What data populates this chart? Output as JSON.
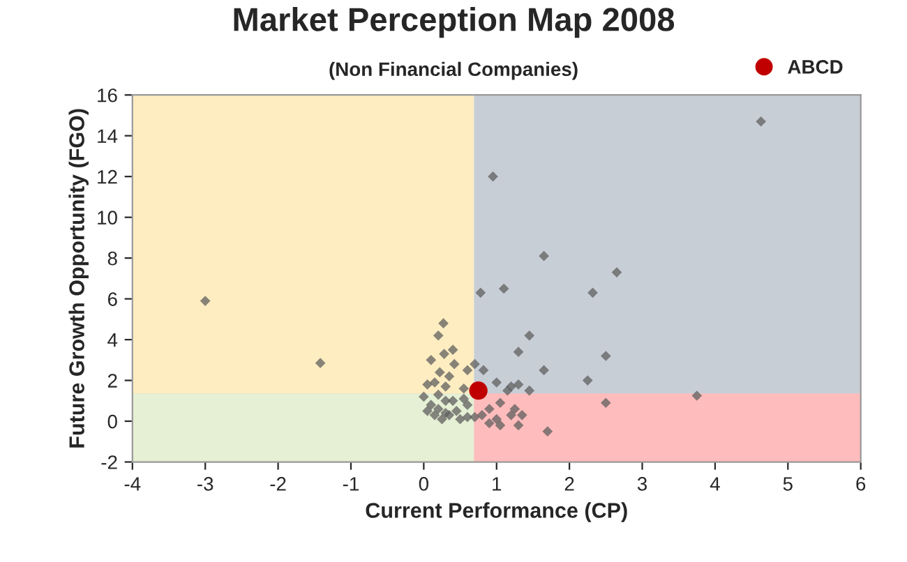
{
  "chart_data": {
    "type": "scatter",
    "title": "Market Perception Map 2008",
    "subtitle": "(Non Financial Companies)",
    "xlabel": "Current Performance (CP)",
    "ylabel": "Future Growth Opportunity (FGO)",
    "xlim": [
      -4,
      6
    ],
    "xticks": [
      -4,
      -3,
      -2,
      -1,
      0,
      1,
      2,
      3,
      4,
      5,
      6
    ],
    "ylim": [
      -2,
      16
    ],
    "yticks": [
      -2,
      0,
      2,
      4,
      6,
      8,
      10,
      12,
      14,
      16
    ],
    "grid": false,
    "legend": "top right",
    "bands": [
      {
        "axis": "x",
        "from": -4,
        "to": 0.69,
        "color": "#fdedc0"
      },
      {
        "axis": "x",
        "from": 0.69,
        "to": 6,
        "color": "#c8ced6"
      },
      {
        "axis": "y",
        "from": -2,
        "to": 1.36,
        "color": "#ffbcbc"
      }
    ],
    "series": [
      {
        "color": "#5f5f5f",
        "marker": "diamond",
        "x": [
          -3,
          -1.42,
          4.63,
          0.95,
          1.65,
          2.65,
          1.1,
          0.78,
          2.32,
          1.45,
          2.5,
          0.27,
          0.2,
          0.4,
          0.28,
          0.1,
          0.42,
          0.22,
          0.6,
          0.82,
          0.7,
          0.35,
          1.3,
          1.65,
          1.0,
          0.15,
          0.05,
          0.3,
          0.55,
          1.15,
          1.2,
          1.3,
          1.45,
          2.25,
          3.75,
          2.5,
          1.7,
          0.9,
          1.05,
          1.25,
          1.35,
          1.2,
          1.05,
          0.9,
          1.0,
          0.8,
          1.3,
          0.0,
          0.1,
          0.2,
          0.3,
          0.35,
          0.45,
          0.5,
          0.15,
          0.05,
          0.25,
          0.6,
          0.6,
          0.4,
          0.2,
          0.7,
          0.55,
          0.3
        ],
        "values": [
          5.9,
          2.85,
          14.7,
          12,
          8.1,
          7.3,
          6.5,
          6.3,
          6.3,
          4.2,
          3.2,
          4.8,
          4.2,
          3.5,
          3.3,
          3.0,
          2.8,
          2.4,
          2.5,
          2.5,
          2.8,
          2.2,
          3.4,
          2.5,
          1.9,
          1.9,
          1.8,
          1.7,
          1.6,
          1.5,
          1.7,
          1.8,
          1.5,
          2.0,
          1.25,
          0.9,
          -0.5,
          0.6,
          0.9,
          0.6,
          0.3,
          0.3,
          -0.2,
          -0.1,
          0.1,
          0.3,
          -0.2,
          1.2,
          0.8,
          0.6,
          0.4,
          0.3,
          0.5,
          0.1,
          0.3,
          0.5,
          0.1,
          0.8,
          0.2,
          1.0,
          1.3,
          0.2,
          1.1,
          1.0
        ]
      },
      {
        "name": "ABCD",
        "color": "#c00000",
        "marker": "circle",
        "x": [
          0.75
        ],
        "values": [
          1.5
        ]
      }
    ]
  }
}
